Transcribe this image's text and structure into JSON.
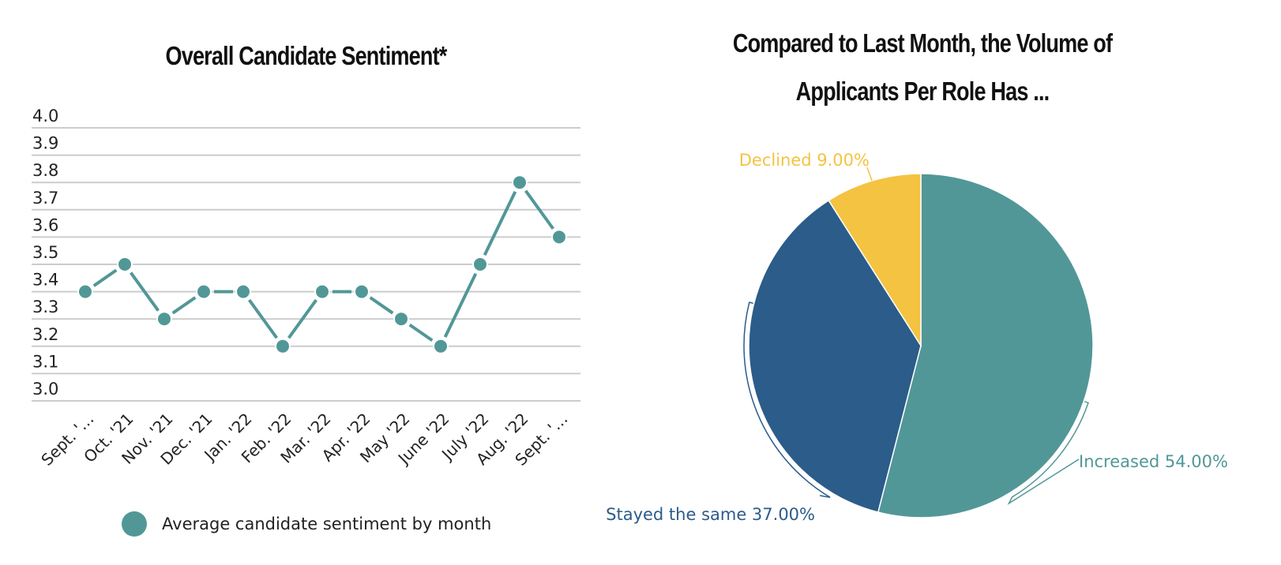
{
  "chart_data": [
    {
      "type": "line",
      "title": "Overall Candidate Sentiment*",
      "xlabel": "",
      "ylabel": "",
      "categories": [
        "Sept. '…",
        "Oct. '21",
        "Nov. '21",
        "Dec. '21",
        "Jan. '22",
        "Feb. '22",
        "Mar. '22",
        "Apr. '22",
        "May '22",
        "June '22",
        "July '22",
        "Aug. '22",
        "Sept. '…"
      ],
      "series": [
        {
          "name": "Average candidate sentiment by month",
          "values": [
            3.4,
            3.5,
            3.3,
            3.4,
            3.4,
            3.2,
            3.4,
            3.4,
            3.3,
            3.2,
            3.5,
            3.8,
            3.6
          ],
          "color": "#529797"
        }
      ],
      "ylim": [
        3.0,
        4.0
      ],
      "yticks": [
        "4.0",
        "3.9",
        "3.8",
        "3.7",
        "3.6",
        "3.5",
        "3.4",
        "3.3",
        "3.2",
        "3.1",
        "3.0"
      ],
      "grid": true,
      "legend": "bottom"
    },
    {
      "type": "pie",
      "title_lines": [
        "Compared to Last Month, the Volume of",
        "Applicants Per Role Has ..."
      ],
      "slices": [
        {
          "label": "Increased",
          "value": 54.0,
          "display": "Increased 54.00%",
          "color": "#529797"
        },
        {
          "label": "Stayed the same",
          "value": 37.0,
          "display": "Stayed the same 37.00%",
          "color": "#2b5c8a"
        },
        {
          "label": "Declined",
          "value": 9.0,
          "display": "Declined 9.00%",
          "color": "#f4c342"
        }
      ]
    }
  ]
}
